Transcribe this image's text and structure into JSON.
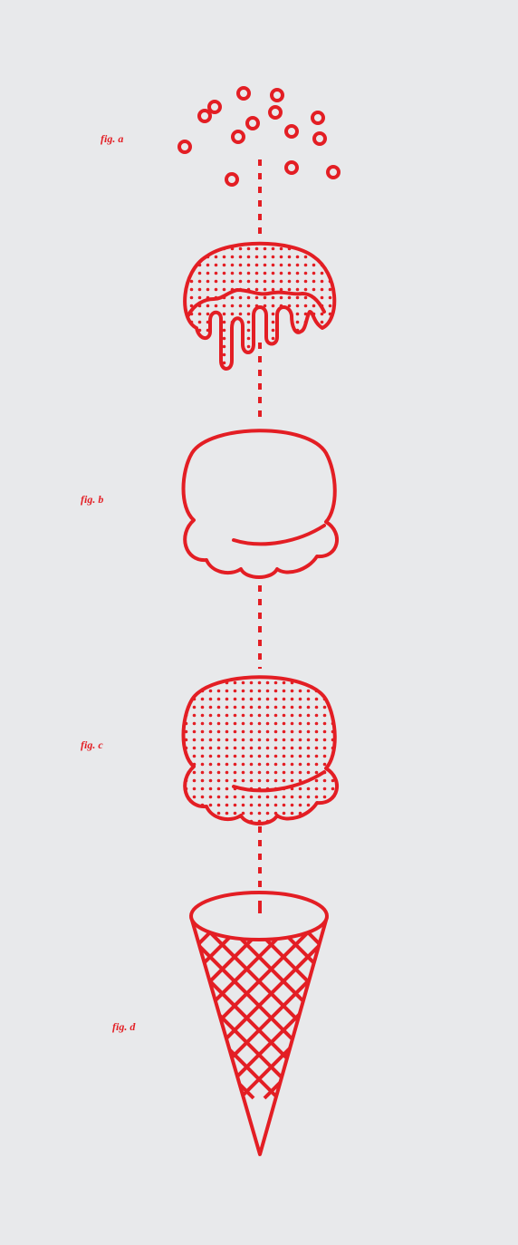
{
  "labels": {
    "a": "fig. a",
    "b": "fig. b",
    "c": "fig. c",
    "d": "fig. d"
  },
  "colors": {
    "background": "#e8e9eb",
    "accent": "#e31e24"
  },
  "figures": [
    {
      "id": "a",
      "subject": "sprinkles-and-dripping-topping"
    },
    {
      "id": "b",
      "subject": "outline-ice-cream-scoop"
    },
    {
      "id": "c",
      "subject": "dotted-ice-cream-scoop"
    },
    {
      "id": "d",
      "subject": "waffle-cone"
    }
  ]
}
